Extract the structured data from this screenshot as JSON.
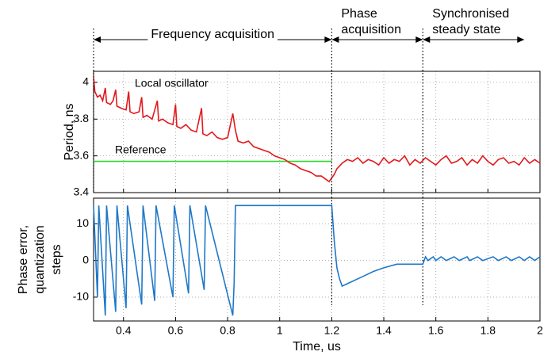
{
  "chart_data": [
    {
      "type": "line",
      "ylabel": [
        "Period, ns"
      ],
      "xlim": [
        0.285,
        2
      ],
      "xticks": [
        0.4,
        0.6,
        0.8,
        1,
        1.2,
        1.4,
        1.6,
        1.8,
        2
      ],
      "ylim": [
        3.4,
        4.06
      ],
      "yticks": [
        3.4,
        3.6,
        3.8,
        4
      ],
      "grid": true,
      "phases": [
        {
          "label": [
            "Frequency acquisition"
          ],
          "start": 0.285,
          "end": 1.2
        },
        {
          "label": [
            "Phase",
            "acquisition"
          ],
          "start": 1.2,
          "end": 1.55
        },
        {
          "label": [
            "Synchronised",
            "steady state"
          ],
          "start": 1.55,
          "end": 1.94
        }
      ],
      "series": [
        {
          "name": "Reference",
          "color": "#2bd62b",
          "x": [
            0.285,
            1.2
          ],
          "values": [
            3.57,
            3.57
          ]
        },
        {
          "name": "Local oscillator",
          "color": "#e3191c",
          "x": [
            0.285,
            0.29,
            0.3,
            0.31,
            0.32,
            0.33,
            0.335,
            0.35,
            0.36,
            0.37,
            0.375,
            0.39,
            0.41,
            0.42,
            0.425,
            0.44,
            0.46,
            0.47,
            0.475,
            0.49,
            0.51,
            0.53,
            0.535,
            0.55,
            0.57,
            0.59,
            0.6,
            0.605,
            0.62,
            0.64,
            0.66,
            0.68,
            0.7,
            0.705,
            0.72,
            0.74,
            0.76,
            0.78,
            0.8,
            0.82,
            0.83,
            0.84,
            0.86,
            0.88,
            0.9,
            0.92,
            0.94,
            0.96,
            0.98,
            1.0,
            1.02,
            1.04,
            1.06,
            1.08,
            1.1,
            1.12,
            1.14,
            1.16,
            1.18,
            1.19,
            1.2,
            1.21,
            1.22,
            1.24,
            1.26,
            1.28,
            1.3,
            1.32,
            1.34,
            1.36,
            1.38,
            1.4,
            1.42,
            1.44,
            1.46,
            1.48,
            1.5,
            1.52,
            1.54,
            1.56,
            1.58,
            1.6,
            1.62,
            1.64,
            1.66,
            1.68,
            1.7,
            1.72,
            1.74,
            1.76,
            1.78,
            1.8,
            1.82,
            1.84,
            1.86,
            1.88,
            1.9,
            1.92,
            1.94,
            1.96,
            1.98,
            2.0
          ],
          "values": [
            4.03,
            3.95,
            3.92,
            3.93,
            3.9,
            3.97,
            3.89,
            3.88,
            3.9,
            3.96,
            3.87,
            3.86,
            3.85,
            3.95,
            3.84,
            3.83,
            3.84,
            3.92,
            3.81,
            3.82,
            3.8,
            3.9,
            3.79,
            3.8,
            3.78,
            3.77,
            3.88,
            3.76,
            3.75,
            3.77,
            3.74,
            3.73,
            3.86,
            3.72,
            3.71,
            3.73,
            3.7,
            3.69,
            3.7,
            3.83,
            3.74,
            3.68,
            3.67,
            3.68,
            3.65,
            3.64,
            3.63,
            3.62,
            3.6,
            3.59,
            3.58,
            3.56,
            3.55,
            3.53,
            3.52,
            3.51,
            3.49,
            3.49,
            3.47,
            3.46,
            3.48,
            3.5,
            3.53,
            3.56,
            3.58,
            3.57,
            3.59,
            3.56,
            3.58,
            3.57,
            3.55,
            3.59,
            3.56,
            3.58,
            3.57,
            3.6,
            3.55,
            3.58,
            3.56,
            3.59,
            3.57,
            3.55,
            3.58,
            3.6,
            3.56,
            3.57,
            3.59,
            3.55,
            3.58,
            3.56,
            3.6,
            3.57,
            3.55,
            3.58,
            3.59,
            3.56,
            3.57,
            3.55,
            3.59,
            3.56,
            3.58,
            3.56
          ]
        }
      ]
    },
    {
      "type": "line",
      "ylabel": [
        "Phase error,",
        "quantization",
        "steps"
      ],
      "xlabel": "Time, us",
      "xlim": [
        0.285,
        2
      ],
      "xticks": [
        0.4,
        0.6,
        0.8,
        1,
        1.2,
        1.4,
        1.6,
        1.8,
        2
      ],
      "ylim": [
        -16.5,
        17
      ],
      "yticks": [
        -10,
        0,
        10
      ],
      "grid": true,
      "series": [
        {
          "name": "Phase error",
          "color": "#1f78c8",
          "x": [
            0.285,
            0.3,
            0.305,
            0.33,
            0.335,
            0.37,
            0.375,
            0.41,
            0.415,
            0.47,
            0.475,
            0.52,
            0.525,
            0.59,
            0.595,
            0.65,
            0.655,
            0.71,
            0.715,
            0.82,
            0.825,
            0.83,
            1.2,
            1.21,
            1.22,
            1.23,
            1.24,
            1.27,
            1.3,
            1.33,
            1.36,
            1.4,
            1.45,
            1.55,
            1.56,
            1.57,
            1.59,
            1.6,
            1.62,
            1.64,
            1.67,
            1.69,
            1.72,
            1.73,
            1.76,
            1.78,
            1.82,
            1.84,
            1.87,
            1.89,
            1.92,
            1.94,
            1.96,
            1.98,
            2.0
          ],
          "values": [
            15,
            -10,
            15,
            -15,
            15,
            -14,
            15,
            -13,
            15,
            -12,
            15,
            -11,
            15,
            -10,
            15,
            -9,
            15,
            -8,
            15,
            -15,
            -6,
            15,
            15,
            5,
            -2,
            -5,
            -7,
            -6,
            -5,
            -4,
            -3,
            -2,
            -1,
            -1,
            1,
            0,
            1,
            0,
            1,
            0,
            1,
            0,
            1,
            0,
            1,
            0,
            1,
            0,
            1,
            0,
            1,
            0,
            1,
            0,
            1
          ]
        }
      ]
    }
  ]
}
